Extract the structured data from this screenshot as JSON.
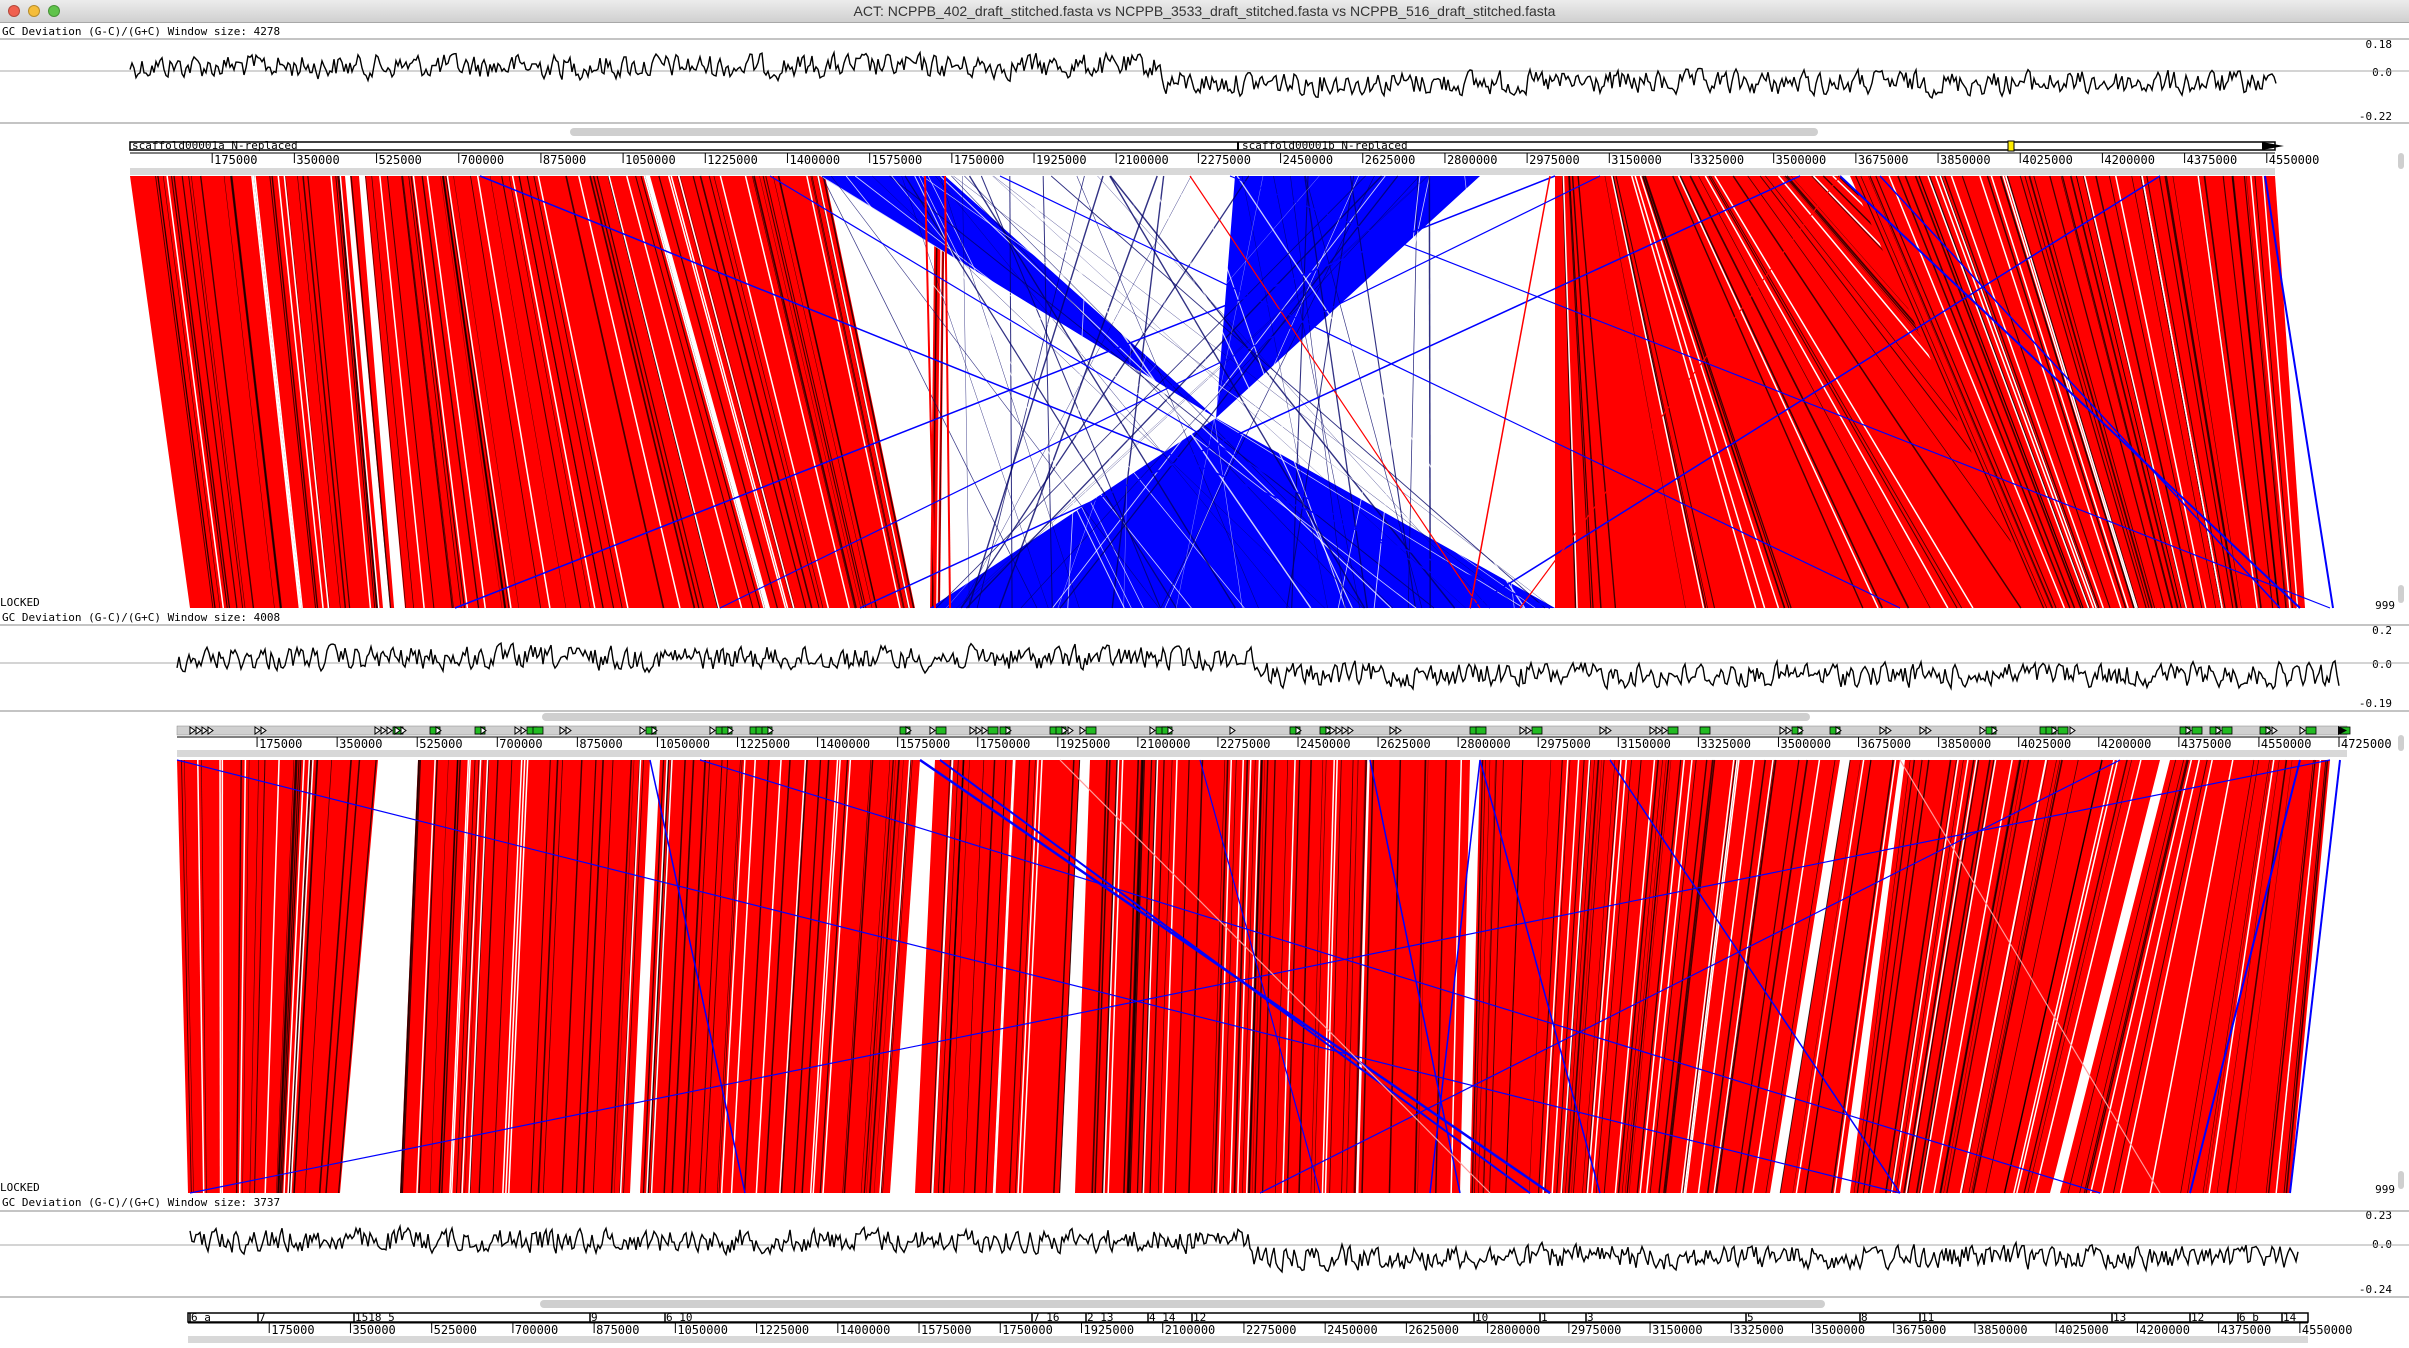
{
  "window": {
    "title": "ACT: NCPPB_402_draft_stitched.fasta vs NCPPB_3533_draft_stitched.fasta vs NCPPB_516_draft_stitched.fasta"
  },
  "graphs": [
    {
      "label": "GC Deviation (G-C)/(G+C)  Window size: 4278",
      "max": "0.18",
      "zero": "0.0",
      "min": "-0.22"
    },
    {
      "label": "GC Deviation (G-C)/(G+C)  Window size: 4008",
      "max": "0.2",
      "zero": "0.0",
      "min": "-0.19"
    },
    {
      "label": "GC Deviation (G-C)/(G+C)  Window size: 3737",
      "max": "0.23",
      "zero": "0.0",
      "min": "-0.24"
    }
  ],
  "sequences": [
    {
      "contigs": [
        "scaffold00001a N-replaced",
        "scaffold00001b N-replaced"
      ],
      "ticks": [
        "175000",
        "350000",
        "525000",
        "700000",
        "875000",
        "1050000",
        "1225000",
        "1400000",
        "1575000",
        "1750000",
        "1925000",
        "2100000",
        "2275000",
        "2450000",
        "2625000",
        "2800000",
        "2975000",
        "3150000",
        "3325000",
        "3500000",
        "3675000",
        "3850000",
        "4025000",
        "4200000",
        "4375000",
        "4550000"
      ]
    },
    {
      "contigs": [],
      "ticks": [
        "175000",
        "350000",
        "525000",
        "700000",
        "875000",
        "1050000",
        "1225000",
        "1400000",
        "1575000",
        "1750000",
        "1925000",
        "2100000",
        "2275000",
        "2450000",
        "2625000",
        "2800000",
        "2975000",
        "3150000",
        "3325000",
        "3500000",
        "3675000",
        "3850000",
        "4025000",
        "4200000",
        "4375000",
        "4550000",
        "4725000"
      ]
    },
    {
      "contigs": [
        "6 a",
        "7",
        "1518 5",
        "9",
        "6 10",
        "7 16",
        "2 13",
        "4 14",
        "12",
        "10",
        "1",
        "3",
        "5",
        "8",
        "11",
        "13",
        "12",
        "6 b",
        "14"
      ],
      "ticks": [
        "175000",
        "350000",
        "525000",
        "700000",
        "875000",
        "1050000",
        "1225000",
        "1400000",
        "1575000",
        "1750000",
        "1925000",
        "2100000",
        "2275000",
        "2450000",
        "2625000",
        "2800000",
        "2975000",
        "3150000",
        "3325000",
        "3500000",
        "3675000",
        "3850000",
        "4025000",
        "4200000",
        "4375000",
        "4550000"
      ]
    }
  ],
  "comparisons": [
    {
      "status": "LOCKED",
      "score": "999"
    },
    {
      "status": "LOCKED",
      "score": "999"
    }
  ],
  "colors": {
    "forward": "#ff0000",
    "reverse": "#0000ff",
    "feature": "#22bb22",
    "highlight": "#eeee00"
  }
}
